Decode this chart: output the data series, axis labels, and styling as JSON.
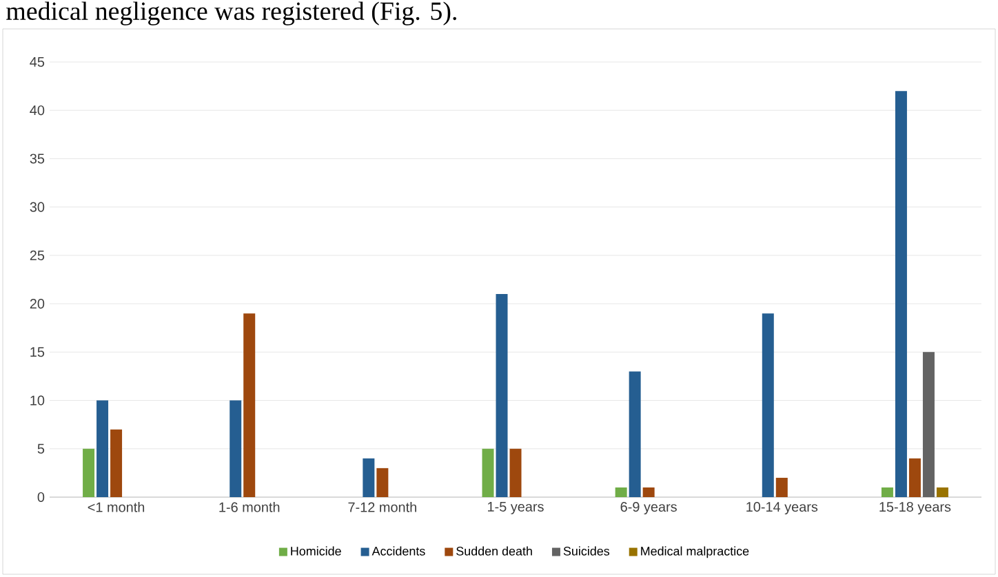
{
  "chart_data": {
    "type": "bar",
    "annotations": [
      "medical negligence was registered (Fig. 5)."
    ],
    "categories": [
      "<1 month",
      "1-6 month",
      "7-12 month",
      "1-5 years",
      "6-9 years",
      "10-14 years",
      "15-18 years"
    ],
    "series": [
      {
        "name": "Homicide",
        "color": "#70ad47",
        "values": [
          5,
          0,
          0,
          5,
          1,
          0,
          1
        ]
      },
      {
        "name": "Accidents",
        "color": "#255e91",
        "values": [
          10,
          10,
          4,
          21,
          13,
          19,
          42
        ]
      },
      {
        "name": "Sudden death",
        "color": "#9e480e",
        "values": [
          7,
          19,
          3,
          5,
          1,
          2,
          4
        ]
      },
      {
        "name": "Suicides",
        "color": "#636363",
        "values": [
          0,
          0,
          0,
          0,
          0,
          0,
          15
        ]
      },
      {
        "name": "Medical malpractice",
        "color": "#997300",
        "values": [
          0,
          0,
          0,
          0,
          0,
          0,
          1
        ]
      }
    ],
    "ylim": [
      0,
      45
    ],
    "yticks": [
      0,
      5,
      10,
      15,
      20,
      25,
      30,
      35,
      40,
      45
    ],
    "grid": "y",
    "legend": "bottom"
  }
}
